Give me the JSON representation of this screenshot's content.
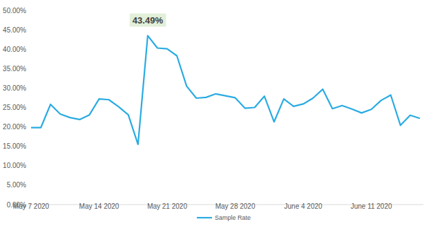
{
  "chart_data": {
    "type": "line",
    "categories": [
      "May 7 2020",
      null,
      null,
      null,
      null,
      null,
      null,
      "May 14 2020",
      null,
      null,
      null,
      null,
      null,
      null,
      "May 21 2020",
      null,
      null,
      null,
      null,
      null,
      null,
      "May 28 2020",
      null,
      null,
      null,
      null,
      null,
      null,
      "June 4 2020",
      null,
      null,
      null,
      null,
      null,
      null,
      "June 11 2020",
      null,
      null,
      null,
      null,
      null
    ],
    "series": [
      {
        "name": "Sample Rate",
        "color": "#29abe2",
        "values": [
          19.8,
          19.8,
          25.8,
          23.3,
          22.4,
          21.9,
          23.1,
          27.2,
          27.0,
          25.2,
          23.1,
          15.5,
          43.49,
          40.3,
          40.1,
          38.3,
          30.5,
          27.4,
          27.6,
          28.5,
          28.0,
          27.5,
          24.8,
          25.0,
          27.9,
          21.3,
          27.2,
          25.3,
          25.9,
          27.4,
          29.7,
          24.7,
          25.5,
          24.6,
          23.6,
          24.5,
          26.8,
          28.2,
          20.4,
          23.0,
          22.2
        ]
      }
    ],
    "annotations": [
      {
        "text": "43.49%"
      }
    ],
    "ylim": [
      0,
      50
    ],
    "yticks": [
      {
        "value": 0,
        "label": "0.00%"
      },
      {
        "value": 5,
        "label": "5.00%"
      },
      {
        "value": 10,
        "label": "10.00%"
      },
      {
        "value": 15,
        "label": "15.00%"
      },
      {
        "value": 20,
        "label": "20.00%"
      },
      {
        "value": 25,
        "label": "25.00%"
      },
      {
        "value": 30,
        "label": "30.00%"
      },
      {
        "value": 35,
        "label": "35.00%"
      },
      {
        "value": 40,
        "label": "40.00%"
      },
      {
        "value": 45,
        "label": "45.00%"
      },
      {
        "value": 50,
        "label": "50.00%"
      }
    ],
    "grid": false,
    "legend": "bottom"
  }
}
